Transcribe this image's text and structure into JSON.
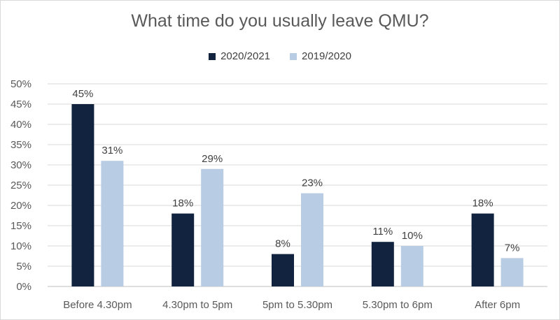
{
  "chart_data": {
    "type": "bar",
    "title": "What time do you usually leave QMU?",
    "xlabel": "",
    "ylabel": "",
    "categories": [
      "Before 4.30pm",
      "4.30pm to 5pm",
      "5pm to 5.30pm",
      "5.30pm to 6pm",
      "After 6pm"
    ],
    "series": [
      {
        "name": "2020/2021",
        "values": [
          45,
          18,
          8,
          11,
          18
        ],
        "labels": [
          "45%",
          "18%",
          "8%",
          "11%",
          "18%"
        ],
        "color": "#12233f"
      },
      {
        "name": "2019/2020",
        "values": [
          31,
          29,
          23,
          10,
          7
        ],
        "labels": [
          "31%",
          "29%",
          "23%",
          "10%",
          "7%"
        ],
        "color": "#b8cce4"
      }
    ],
    "ylim": [
      0,
      50
    ],
    "yticks": [
      "0%",
      "5%",
      "10%",
      "15%",
      "20%",
      "25%",
      "30%",
      "35%",
      "40%",
      "45%",
      "50%"
    ],
    "grid": true,
    "legend_position": "top"
  }
}
